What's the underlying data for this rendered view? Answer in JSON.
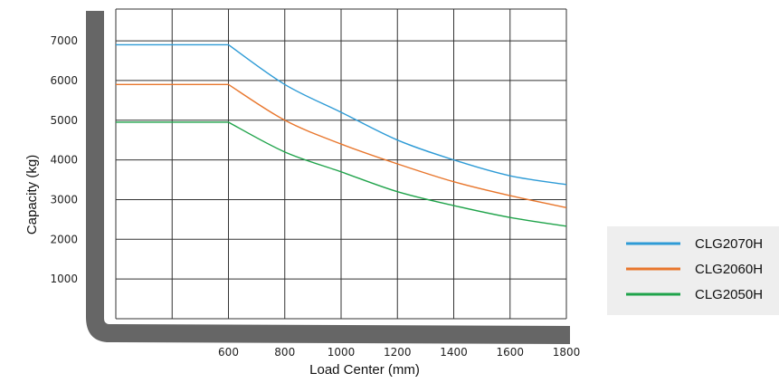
{
  "chart_data": {
    "type": "line",
    "title": "",
    "xlabel": "Load Center (mm)",
    "ylabel": "Capacity (kg)",
    "x_ticks": [
      600,
      800,
      1000,
      1200,
      1400,
      1600,
      1800
    ],
    "y_ticks": [
      1000,
      2000,
      3000,
      4000,
      5000,
      6000,
      7000
    ],
    "legend": "right",
    "grid": true,
    "series": [
      {
        "name": "CLG2070H",
        "color": "#2e9bd6",
        "x": [
          200,
          600,
          800,
          1000,
          1200,
          1400,
          1600,
          1800
        ],
        "y": [
          6900,
          6900,
          5900,
          5200,
          4500,
          4000,
          3600,
          3380
        ]
      },
      {
        "name": "CLG2060H",
        "color": "#e8762c",
        "x": [
          200,
          600,
          800,
          1000,
          1200,
          1400,
          1600,
          1800
        ],
        "y": [
          5900,
          5900,
          5000,
          4400,
          3900,
          3450,
          3100,
          2800
        ]
      },
      {
        "name": "CLG2050H",
        "color": "#1fa34a",
        "x": [
          200,
          600,
          800,
          1000,
          1200,
          1400,
          1600,
          1800
        ],
        "y": [
          4950,
          4950,
          4200,
          3700,
          3200,
          2850,
          2550,
          2330
        ]
      }
    ]
  }
}
